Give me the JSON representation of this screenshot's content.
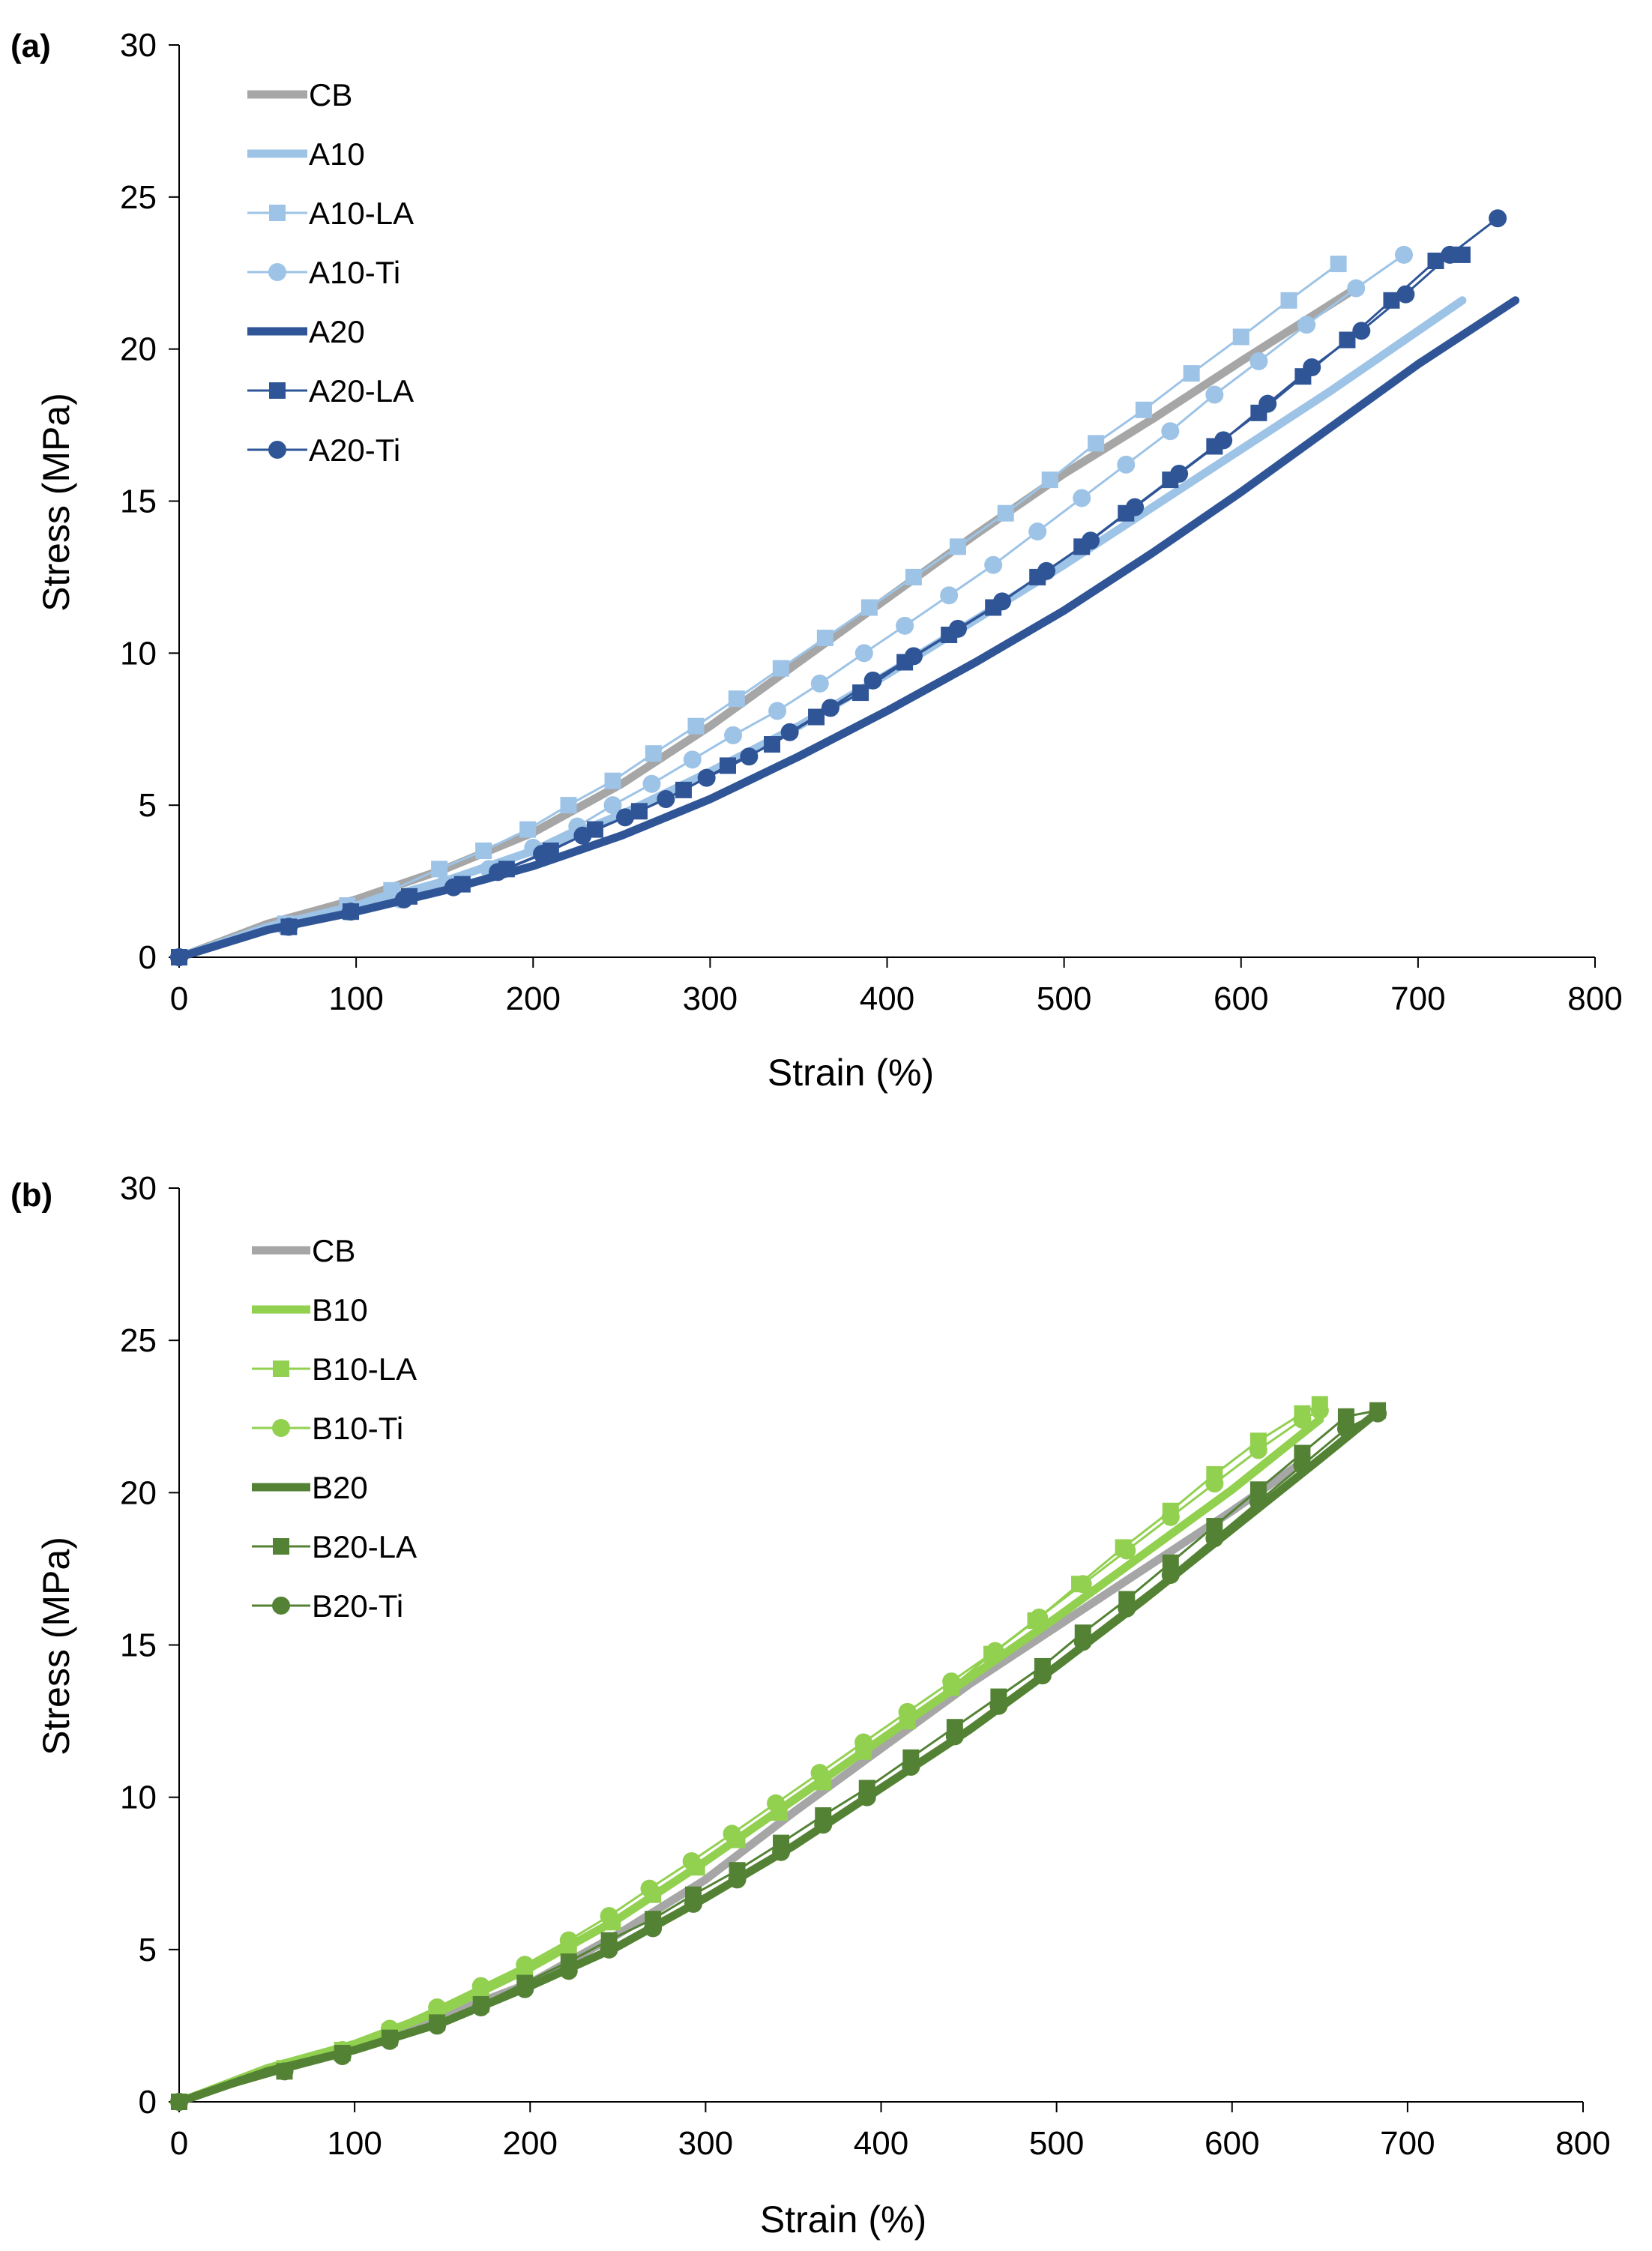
{
  "figure": {
    "colors": {
      "CB": "#a6a6a6",
      "A10": "#9dc3e6",
      "A20": "#2f5597",
      "B10": "#92d050",
      "B20": "#548235",
      "axis": "#000000"
    }
  },
  "chart_data": [
    {
      "panel_label": "(a)",
      "type": "line",
      "xlabel": "Strain (%)",
      "ylabel": "Stress (MPa)",
      "xlim": [
        0,
        800
      ],
      "ylim": [
        0,
        30
      ],
      "xticks": [
        0,
        100,
        200,
        300,
        400,
        500,
        600,
        700,
        800
      ],
      "yticks": [
        0,
        5,
        10,
        15,
        20,
        25,
        30
      ],
      "grid": false,
      "legend_position": "top-left",
      "series": [
        {
          "name": "CB",
          "color": "#a6a6a6",
          "marker": "none",
          "width": "thick",
          "x": [
            0,
            50,
            100,
            150,
            200,
            250,
            300,
            350,
            400,
            450,
            500,
            550,
            600,
            665
          ],
          "y": [
            0,
            1.1,
            1.9,
            2.9,
            4.1,
            5.7,
            7.6,
            9.7,
            11.8,
            13.9,
            15.9,
            17.7,
            19.6,
            22.0
          ]
        },
        {
          "name": "A10",
          "color": "#9dc3e6",
          "marker": "none",
          "width": "thick",
          "x": [
            0,
            50,
            100,
            150,
            200,
            250,
            300,
            350,
            400,
            450,
            500,
            550,
            600,
            650,
            725
          ],
          "y": [
            0,
            1.0,
            1.7,
            2.5,
            3.5,
            4.7,
            6.1,
            7.6,
            9.3,
            11.1,
            12.9,
            14.8,
            16.7,
            18.6,
            21.6
          ]
        },
        {
          "name": "A10-LA",
          "color": "#9dc3e6",
          "marker": "square",
          "width": "thin",
          "x": [
            0,
            60,
            95,
            120,
            147,
            172,
            197,
            220,
            245,
            268,
            292,
            315,
            340,
            365,
            390,
            415,
            440,
            467,
            492,
            518,
            545,
            572,
            600,
            627,
            655
          ],
          "y": [
            0,
            1.1,
            1.7,
            2.2,
            2.9,
            3.5,
            4.2,
            5.0,
            5.8,
            6.7,
            7.6,
            8.5,
            9.5,
            10.5,
            11.5,
            12.5,
            13.5,
            14.6,
            15.7,
            16.9,
            18.0,
            19.2,
            20.4,
            21.6,
            22.8
          ]
        },
        {
          "name": "A10-Ti",
          "color": "#9dc3e6",
          "marker": "circle",
          "width": "thin",
          "x": [
            0,
            60,
            95,
            125,
            150,
            175,
            200,
            225,
            245,
            267,
            290,
            313,
            338,
            362,
            387,
            410,
            435,
            460,
            485,
            510,
            535,
            560,
            585,
            610,
            637,
            665,
            692
          ],
          "y": [
            0,
            1.0,
            1.5,
            1.9,
            2.4,
            2.9,
            3.6,
            4.3,
            5.0,
            5.7,
            6.5,
            7.3,
            8.1,
            9.0,
            10.0,
            10.9,
            11.9,
            12.9,
            14.0,
            15.1,
            16.2,
            17.3,
            18.5,
            19.6,
            20.8,
            22.0,
            23.1
          ]
        },
        {
          "name": "A20",
          "color": "#2f5597",
          "marker": "none",
          "width": "thick",
          "x": [
            0,
            50,
            100,
            150,
            200,
            250,
            300,
            350,
            400,
            450,
            500,
            550,
            600,
            650,
            700,
            755
          ],
          "y": [
            0,
            0.9,
            1.5,
            2.2,
            3.0,
            4.0,
            5.2,
            6.6,
            8.1,
            9.7,
            11.4,
            13.3,
            15.3,
            17.4,
            19.5,
            21.6
          ]
        },
        {
          "name": "A20-LA",
          "color": "#2f5597",
          "marker": "square",
          "width": "thin",
          "x": [
            0,
            62,
            97,
            130,
            160,
            185,
            210,
            235,
            260,
            285,
            310,
            335,
            360,
            385,
            410,
            435,
            460,
            485,
            510,
            535,
            560,
            585,
            610,
            635,
            660,
            685,
            710,
            725
          ],
          "y": [
            0,
            1.0,
            1.5,
            2.0,
            2.4,
            2.9,
            3.5,
            4.2,
            4.8,
            5.5,
            6.3,
            7.0,
            7.9,
            8.7,
            9.7,
            10.6,
            11.5,
            12.5,
            13.5,
            14.6,
            15.7,
            16.8,
            17.9,
            19.1,
            20.3,
            21.6,
            22.9,
            23.1
          ]
        },
        {
          "name": "A20-Ti",
          "color": "#2f5597",
          "marker": "circle",
          "width": "thin",
          "x": [
            0,
            62,
            97,
            127,
            155,
            180,
            205,
            228,
            252,
            275,
            298,
            322,
            345,
            368,
            392,
            415,
            440,
            465,
            490,
            515,
            540,
            565,
            590,
            615,
            640,
            668,
            693,
            718,
            745
          ],
          "y": [
            0,
            1.0,
            1.5,
            1.9,
            2.3,
            2.8,
            3.4,
            4.0,
            4.6,
            5.2,
            5.9,
            6.6,
            7.4,
            8.2,
            9.1,
            9.9,
            10.8,
            11.7,
            12.7,
            13.7,
            14.8,
            15.9,
            17.0,
            18.2,
            19.4,
            20.6,
            21.8,
            23.1,
            24.3
          ]
        }
      ]
    },
    {
      "panel_label": "(b)",
      "type": "line",
      "xlabel": "Strain (%)",
      "ylabel": "Stress (MPa)",
      "xlim": [
        0,
        800
      ],
      "ylim": [
        0,
        30
      ],
      "xticks": [
        0,
        100,
        200,
        300,
        400,
        500,
        600,
        700,
        800
      ],
      "yticks": [
        0,
        5,
        10,
        15,
        20,
        25,
        30
      ],
      "grid": false,
      "legend_position": "top-left",
      "series": [
        {
          "name": "CB",
          "color": "#a6a6a6",
          "marker": "none",
          "width": "thick",
          "x": [
            0,
            50,
            100,
            150,
            200,
            250,
            300,
            350,
            400,
            450,
            500,
            550,
            600,
            640
          ],
          "y": [
            0,
            1.0,
            1.8,
            2.8,
            3.9,
            5.5,
            7.3,
            9.5,
            11.6,
            13.7,
            15.6,
            17.5,
            19.4,
            21.0
          ]
        },
        {
          "name": "B10",
          "color": "#92d050",
          "marker": "none",
          "width": "thick",
          "x": [
            0,
            50,
            100,
            150,
            200,
            250,
            300,
            350,
            400,
            450,
            500,
            550,
            600,
            650
          ],
          "y": [
            0,
            1.1,
            1.9,
            3.0,
            4.4,
            6.0,
            7.9,
            9.9,
            11.9,
            13.9,
            15.9,
            18.0,
            20.1,
            22.4
          ]
        },
        {
          "name": "B10-LA",
          "color": "#92d050",
          "marker": "square",
          "width": "thin",
          "x": [
            0,
            60,
            93,
            120,
            147,
            172,
            197,
            222,
            247,
            270,
            295,
            318,
            342,
            367,
            390,
            415,
            440,
            463,
            488,
            513,
            538,
            565,
            590,
            615,
            640,
            650
          ],
          "y": [
            0,
            1.1,
            1.7,
            2.3,
            2.9,
            3.6,
            4.3,
            5.1,
            5.9,
            6.8,
            7.7,
            8.6,
            9.5,
            10.5,
            11.5,
            12.5,
            13.6,
            14.7,
            15.8,
            17.0,
            18.2,
            19.4,
            20.6,
            21.7,
            22.6,
            22.9
          ]
        },
        {
          "name": "B10-Ti",
          "color": "#92d050",
          "marker": "circle",
          "width": "thin",
          "x": [
            0,
            60,
            93,
            120,
            147,
            172,
            197,
            222,
            245,
            268,
            292,
            315,
            340,
            365,
            390,
            415,
            440,
            465,
            490,
            515,
            540,
            565,
            590,
            615,
            640,
            650
          ],
          "y": [
            0,
            1.1,
            1.7,
            2.4,
            3.1,
            3.8,
            4.5,
            5.3,
            6.1,
            7.0,
            7.9,
            8.8,
            9.8,
            10.8,
            11.8,
            12.8,
            13.8,
            14.8,
            15.9,
            17.0,
            18.1,
            19.2,
            20.3,
            21.4,
            22.4,
            22.7
          ]
        },
        {
          "name": "B20",
          "color": "#548235",
          "marker": "none",
          "width": "thick",
          "x": [
            0,
            50,
            100,
            150,
            200,
            250,
            300,
            350,
            400,
            450,
            500,
            550,
            600,
            650,
            682
          ],
          "y": [
            0,
            1.0,
            1.7,
            2.6,
            3.8,
            5.1,
            6.7,
            8.4,
            10.3,
            12.2,
            14.3,
            16.5,
            18.8,
            21.1,
            22.6
          ]
        },
        {
          "name": "B20-LA",
          "color": "#548235",
          "marker": "square",
          "width": "thin",
          "x": [
            0,
            60,
            93,
            120,
            147,
            172,
            197,
            222,
            245,
            270,
            293,
            318,
            343,
            367,
            392,
            417,
            442,
            467,
            492,
            515,
            540,
            565,
            590,
            615,
            640,
            665,
            683
          ],
          "y": [
            0,
            1.0,
            1.6,
            2.1,
            2.6,
            3.2,
            3.9,
            4.6,
            5.3,
            6.0,
            6.8,
            7.6,
            8.5,
            9.4,
            10.3,
            11.3,
            12.3,
            13.3,
            14.3,
            15.4,
            16.5,
            17.7,
            18.9,
            20.1,
            21.3,
            22.5,
            22.7
          ]
        },
        {
          "name": "B20-Ti",
          "color": "#548235",
          "marker": "circle",
          "width": "thin",
          "x": [
            0,
            60,
            93,
            120,
            147,
            172,
            197,
            222,
            245,
            270,
            293,
            318,
            343,
            367,
            392,
            417,
            442,
            467,
            492,
            515,
            540,
            565,
            590,
            615,
            640,
            665,
            683
          ],
          "y": [
            0,
            1.0,
            1.5,
            2.0,
            2.5,
            3.1,
            3.7,
            4.3,
            5.0,
            5.7,
            6.5,
            7.3,
            8.2,
            9.1,
            10.0,
            11.0,
            12.0,
            13.0,
            14.0,
            15.1,
            16.2,
            17.3,
            18.5,
            19.7,
            20.9,
            22.1,
            22.6
          ]
        }
      ]
    }
  ]
}
